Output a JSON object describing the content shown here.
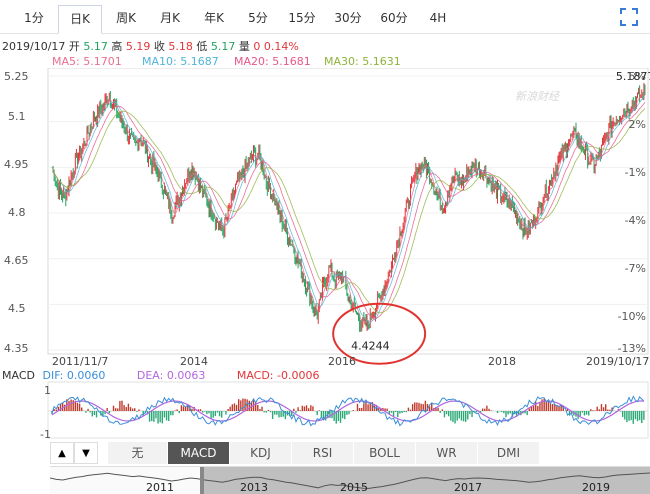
{
  "tabs": [
    {
      "label": "1分"
    },
    {
      "label": "日K"
    },
    {
      "label": "周K"
    },
    {
      "label": "月K"
    },
    {
      "label": "年K"
    },
    {
      "label": "5分"
    },
    {
      "label": "15分"
    },
    {
      "label": "30分"
    },
    {
      "label": "60分"
    },
    {
      "label": "4H"
    }
  ],
  "active_tab": "日K",
  "quote": {
    "date": "2019/10/17",
    "open_label": "开",
    "open": "5.17",
    "high_label": "高",
    "high": "5.19",
    "close_label": "收",
    "close": "5.18",
    "low_label": "低",
    "low": "5.17",
    "vol_label": "量",
    "vol": "0",
    "change": "0.14%"
  },
  "ma": [
    {
      "label": "MA5: 5.1701",
      "color": "#e86f8f"
    },
    {
      "label": "MA10: 5.1687",
      "color": "#4fb5d8"
    },
    {
      "label": "MA20: 5.1681",
      "color": "#e8568a"
    },
    {
      "label": "MA30: 5.1631",
      "color": "#8fb33c"
    }
  ],
  "watermark": "新浪财经",
  "chart_data": {
    "type": "line",
    "y_ticks": [
      "5.25",
      "5.1",
      "4.95",
      "4.8",
      "4.65",
      "4.5",
      "4.35"
    ],
    "y_right_ticks": [
      "5%",
      "2%",
      "-1%",
      "-4%",
      "-7%",
      "-10%",
      "-13%"
    ],
    "x_ticks": [
      "2011/11/7",
      "2014",
      "2016",
      "2018",
      "2019/10/17"
    ],
    "annotations": {
      "max": "5.1877",
      "min": "4.4244"
    },
    "ylim": [
      4.35,
      5.25
    ],
    "series_close": [
      4.95,
      4.88,
      4.85,
      4.92,
      4.98,
      5.02,
      5.08,
      5.12,
      5.15,
      5.19,
      5.14,
      5.1,
      5.06,
      5.02,
      5.05,
      5.0,
      4.96,
      4.92,
      4.86,
      4.8,
      4.84,
      4.9,
      4.95,
      4.92,
      4.86,
      4.82,
      4.78,
      4.74,
      4.8,
      4.88,
      4.92,
      4.96,
      4.99,
      4.98,
      4.9,
      4.86,
      4.8,
      4.74,
      4.7,
      4.64,
      4.58,
      4.52,
      4.46,
      4.56,
      4.62,
      4.58,
      4.6,
      4.52,
      4.48,
      4.44,
      4.43,
      4.48,
      4.52,
      4.58,
      4.64,
      4.72,
      4.8,
      4.88,
      4.95,
      4.96,
      4.92,
      4.86,
      4.82,
      4.88,
      4.92,
      4.9,
      4.94,
      4.95,
      4.94,
      4.92,
      4.88,
      4.86,
      4.84,
      4.82,
      4.78,
      4.74,
      4.76,
      4.8,
      4.86,
      4.9,
      4.96,
      5.0,
      5.04,
      5.06,
      5.02,
      4.98,
      4.96,
      5.0,
      5.06,
      5.1,
      5.12,
      5.14,
      5.16,
      5.18,
      5.2
    ]
  },
  "macd": {
    "label": "MACD",
    "dif_label": "DIF: 0.0060",
    "dea_label": "DEA: 0.0063",
    "macd_label": "MACD: -0.0006",
    "y_top": "1",
    "y_bottom": "-1"
  },
  "indicator_tabs": [
    "无",
    "MACD",
    "KDJ",
    "RSI",
    "BOLL",
    "WR",
    "DMI"
  ],
  "active_indicator": "MACD",
  "nav_years": [
    "2011",
    "2013",
    "2015",
    "2017",
    "2019"
  ]
}
